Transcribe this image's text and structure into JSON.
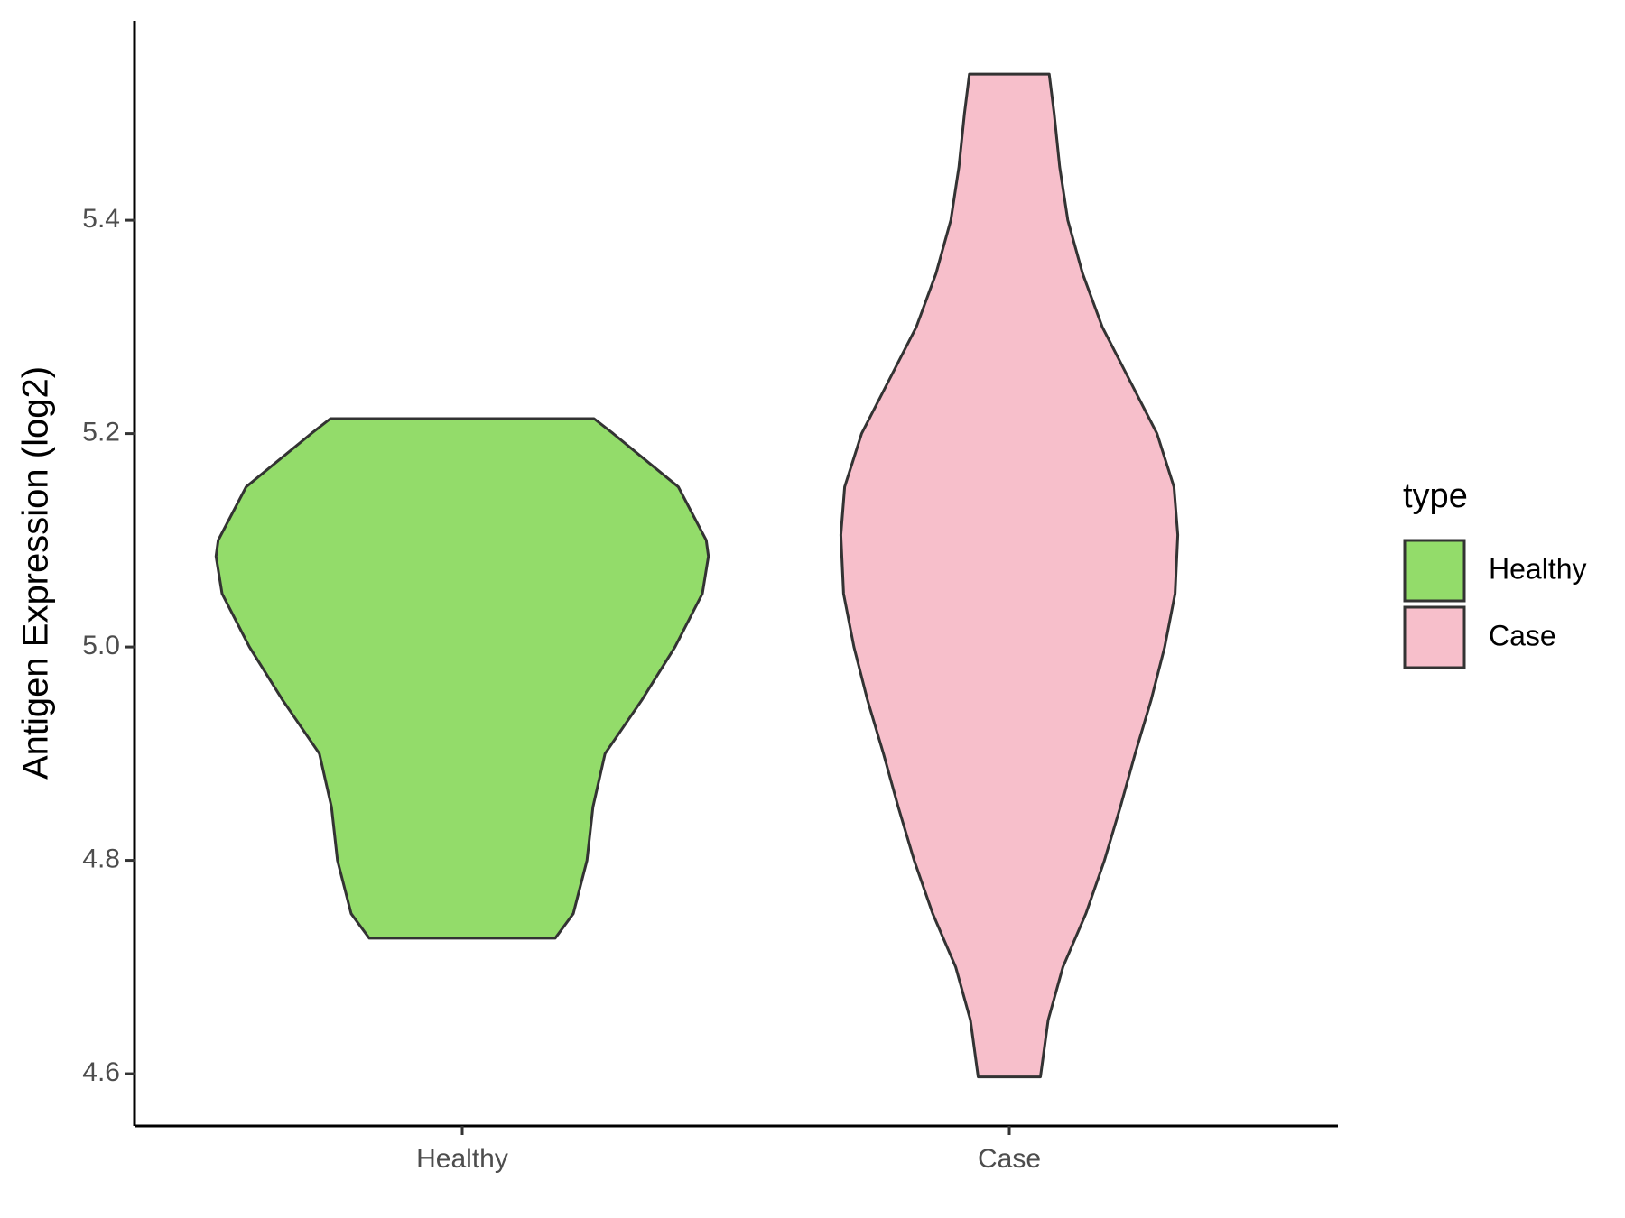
{
  "chart_data": {
    "type": "violin",
    "y_label": "Antigen Expression (log2)",
    "categories": [
      "Healthy",
      "Case"
    ],
    "legend_title": "type",
    "legend": "right",
    "ylim": [
      4.551,
      5.587
    ],
    "yticks": [
      4.6,
      4.8,
      {
        "value": 5,
        "label": "5.0"
      },
      5.2,
      5.4
    ],
    "series": [
      {
        "name": "Healthy",
        "color": "#93dc6a",
        "y": [
          4.727,
          4.75,
          4.8,
          4.85,
          4.9,
          4.95,
          5.0,
          5.05,
          5.085,
          5.1,
          5.15,
          5.2,
          5.214
        ],
        "width": [
          0.17,
          0.203,
          0.228,
          0.239,
          0.261,
          0.328,
          0.389,
          0.439,
          0.45,
          0.446,
          0.395,
          0.276,
          0.241
        ]
      },
      {
        "name": "Case",
        "color": "#f7bfcb",
        "y": [
          4.597,
          4.65,
          4.7,
          4.75,
          4.8,
          4.85,
          4.9,
          4.95,
          5.0,
          5.05,
          5.105,
          5.15,
          5.2,
          5.25,
          5.3,
          5.35,
          5.4,
          5.45,
          5.5,
          5.537
        ],
        "width": [
          0.057,
          0.071,
          0.098,
          0.14,
          0.174,
          0.203,
          0.23,
          0.259,
          0.284,
          0.303,
          0.308,
          0.301,
          0.27,
          0.22,
          0.17,
          0.134,
          0.107,
          0.092,
          0.082,
          0.073
        ]
      }
    ]
  }
}
